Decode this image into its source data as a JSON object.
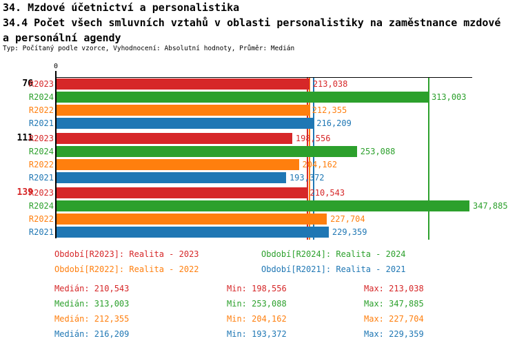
{
  "header": {
    "title_line1": "34. Mzdové účetnictví a personalistika",
    "title_line2": "34.4 Počet všech smluvních vztahů v oblasti personalistiky na zaměstnance mzdové",
    "title_line3": "a personální agendy",
    "meta_line": "Typ: Počítaný podle vzorce, Vyhodnocení: Absolutní hodnoty, Průměr: Medián"
  },
  "chart_data": {
    "type": "bar",
    "orientation": "horizontal",
    "axis_origin_label": "0",
    "xlim": [
      0,
      350000
    ],
    "grid": false,
    "categories": [
      "76",
      "111",
      "139"
    ],
    "category_colors": [
      "#000000",
      "#000000",
      "#d62728"
    ],
    "series": [
      {
        "name": "R2023",
        "color": "#d62728",
        "values": [
          213038,
          198556,
          210543
        ],
        "value_labels": [
          "213,038",
          "198,556",
          "210,543"
        ],
        "median": 210543
      },
      {
        "name": "R2024",
        "color": "#2ca02c",
        "values": [
          313003,
          253088,
          347885
        ],
        "value_labels": [
          "313,003",
          "253,088",
          "347,885"
        ],
        "median": 313003
      },
      {
        "name": "R2022",
        "color": "#ff7f0e",
        "values": [
          212355,
          204162,
          227704
        ],
        "value_labels": [
          "212,355",
          "204,162",
          "227,704"
        ],
        "median": 212355
      },
      {
        "name": "R2021",
        "color": "#1f77b4",
        "values": [
          216209,
          193372,
          229359
        ],
        "value_labels": [
          "216,209",
          "193,372",
          "229,359"
        ],
        "median": 216209
      }
    ],
    "median_lines_shown": true
  },
  "legend": {
    "items": [
      {
        "series": "R2023",
        "label": "Období[R2023]: Realita - 2023",
        "color": "#d62728"
      },
      {
        "series": "R2024",
        "label": "Období[R2024]: Realita - 2024",
        "color": "#2ca02c"
      },
      {
        "series": "R2022",
        "label": "Období[R2022]: Realita - 2022",
        "color": "#ff7f0e"
      },
      {
        "series": "R2021",
        "label": "Období[R2021]: Realita - 2021",
        "color": "#1f77b4"
      }
    ]
  },
  "stats": {
    "rows": [
      {
        "series": "R2023",
        "color": "#d62728",
        "median": "Medián: 210,543",
        "min": "Min: 198,556",
        "max": "Max: 213,038"
      },
      {
        "series": "R2024",
        "color": "#2ca02c",
        "median": "Medián: 313,003",
        "min": "Min: 253,088",
        "max": "Max: 347,885"
      },
      {
        "series": "R2022",
        "color": "#ff7f0e",
        "median": "Medián: 212,355",
        "min": "Min: 204,162",
        "max": "Max: 227,704"
      },
      {
        "series": "R2021",
        "color": "#1f77b4",
        "median": "Medián: 216,209",
        "min": "Min: 193,372",
        "max": "Max: 229,359"
      }
    ]
  }
}
